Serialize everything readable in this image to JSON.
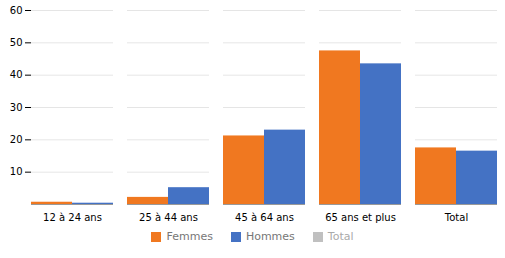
{
  "chart_data": {
    "type": "bar",
    "categories": [
      "12 à 24 ans",
      "25 à 44 ans",
      "45 à 64 ans",
      "65 ans et plus",
      "Total"
    ],
    "series": [
      {
        "name": "Femmes",
        "color": "#F07820",
        "values": [
          0.7,
          2.2,
          21.2,
          47.5,
          17.5
        ]
      },
      {
        "name": "Hommes",
        "color": "#4472C4",
        "values": [
          0.4,
          5.2,
          23.0,
          43.5,
          16.5
        ]
      },
      {
        "name": "Total",
        "color": "#C0C0C0",
        "values": [
          null,
          null,
          null,
          null,
          null
        ]
      }
    ],
    "ylim": [
      0,
      60
    ],
    "yticks": [
      10,
      20,
      30,
      40,
      50,
      60
    ],
    "grid": true,
    "legend": "bottom"
  }
}
